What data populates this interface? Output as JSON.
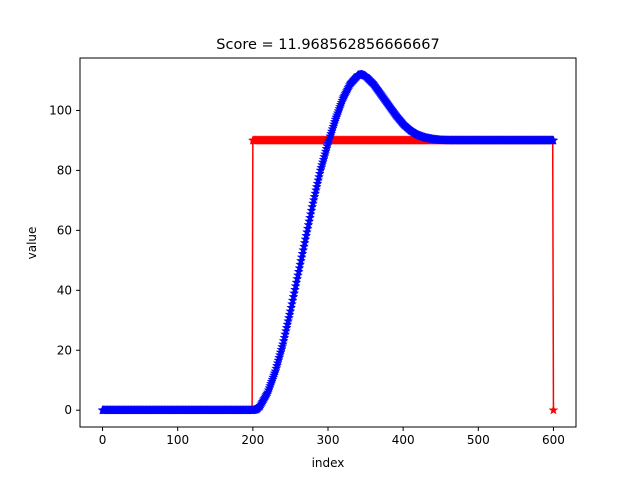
{
  "chart_data": {
    "type": "line",
    "title": "Score = 11.968562856666667",
    "xlabel": "index",
    "ylabel": "value",
    "xlim": [
      -30,
      630
    ],
    "ylim": [
      -5.6,
      117.5
    ],
    "xticks": [
      0,
      100,
      200,
      300,
      400,
      500,
      600
    ],
    "yticks": [
      0,
      20,
      40,
      60,
      80,
      100
    ],
    "grid": false,
    "legend": "none",
    "series": [
      {
        "color": "#ff0000",
        "marker": "star",
        "x": [
          0,
          199,
          200,
          599,
          600
        ],
        "y": [
          0,
          0,
          90,
          90,
          0
        ],
        "dense_range": [
          200,
          599
        ]
      },
      {
        "color": "#0000ff",
        "marker": "star",
        "x": [
          0,
          50,
          100,
          150,
          200,
          205,
          210,
          220,
          230,
          240,
          250,
          260,
          270,
          280,
          290,
          300,
          310,
          320,
          330,
          340,
          345,
          350,
          360,
          370,
          380,
          390,
          400,
          410,
          420,
          430,
          440,
          450,
          460,
          470,
          480,
          500,
          550,
          600
        ],
        "y": [
          0,
          0,
          0,
          0,
          0,
          0.3,
          1.5,
          6,
          13,
          22,
          33,
          45,
          57,
          69,
          80,
          89,
          97,
          104,
          109,
          111.8,
          112,
          111.5,
          109,
          105.5,
          102,
          98.5,
          95.5,
          93.3,
          91.8,
          90.9,
          90.4,
          90.1,
          90,
          90,
          90,
          90,
          90,
          90
        ],
        "dense_range": [
          0,
          599
        ]
      }
    ]
  }
}
